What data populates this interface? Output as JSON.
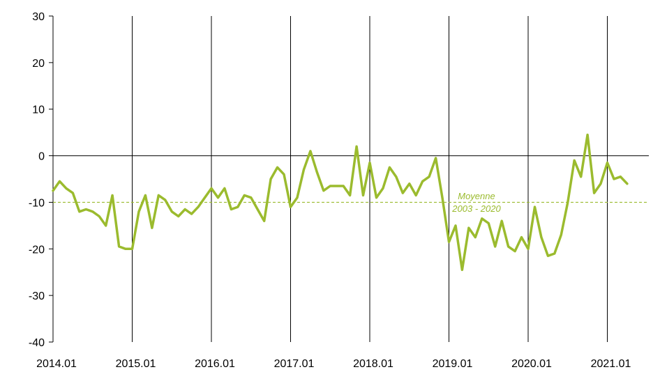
{
  "chart_data": {
    "type": "line",
    "title": "",
    "xlabel": "",
    "ylabel": "",
    "ylim": [
      -40,
      30
    ],
    "yticks": [
      "30",
      "20",
      "10",
      "0",
      "-10",
      "-20",
      "-30",
      "-40"
    ],
    "xticks": [
      "2014.01",
      "2015.01",
      "2016.01",
      "2017.01",
      "2018.01",
      "2019.01",
      "2020.01",
      "2021.01"
    ],
    "grid": "vertical lines at each January",
    "colors": {
      "series": "#9bbb2e",
      "reference": "#9bbb2e",
      "axis": "#000000"
    },
    "series": [
      {
        "start": "2014.01",
        "frequency": "monthly",
        "values": [
          -7.5,
          -5.5,
          -7.0,
          -8.0,
          -12.0,
          -11.5,
          -12.0,
          -13.0,
          -15.0,
          -8.5,
          -19.5,
          -20.0,
          -20.0,
          -12.0,
          -8.5,
          -15.5,
          -8.5,
          -9.5,
          -12.0,
          -13.0,
          -11.5,
          -12.5,
          -11.0,
          -9.0,
          -7.0,
          -9.0,
          -7.0,
          -11.5,
          -11.0,
          -8.5,
          -9.0,
          -11.5,
          -14.0,
          -5.0,
          -2.5,
          -4.0,
          -11.0,
          -9.0,
          -3.0,
          1.0,
          -3.5,
          -7.5,
          -6.5,
          -6.5,
          -6.5,
          -8.5,
          2.0,
          -8.5,
          -1.5,
          -9.0,
          -7.0,
          -2.5,
          -4.5,
          -8.0,
          -6.0,
          -8.5,
          -5.5,
          -4.5,
          -0.5,
          -9.0,
          -18.5,
          -15.0,
          -24.5,
          -15.5,
          -17.5,
          -13.5,
          -14.5,
          -19.5,
          -14.0,
          -19.5,
          -20.5,
          -17.5,
          -20.0,
          -11.0,
          -17.5,
          -21.5,
          -21.0,
          -17.0,
          -10.0,
          -1.0,
          -4.5,
          4.5,
          -8.0,
          -6.0,
          -1.5,
          -5.0,
          -4.5,
          -6.0
        ]
      }
    ],
    "reference_line": {
      "value": -10,
      "label_line1": "Moyenne",
      "label_line2": "2003 - 2020"
    }
  }
}
